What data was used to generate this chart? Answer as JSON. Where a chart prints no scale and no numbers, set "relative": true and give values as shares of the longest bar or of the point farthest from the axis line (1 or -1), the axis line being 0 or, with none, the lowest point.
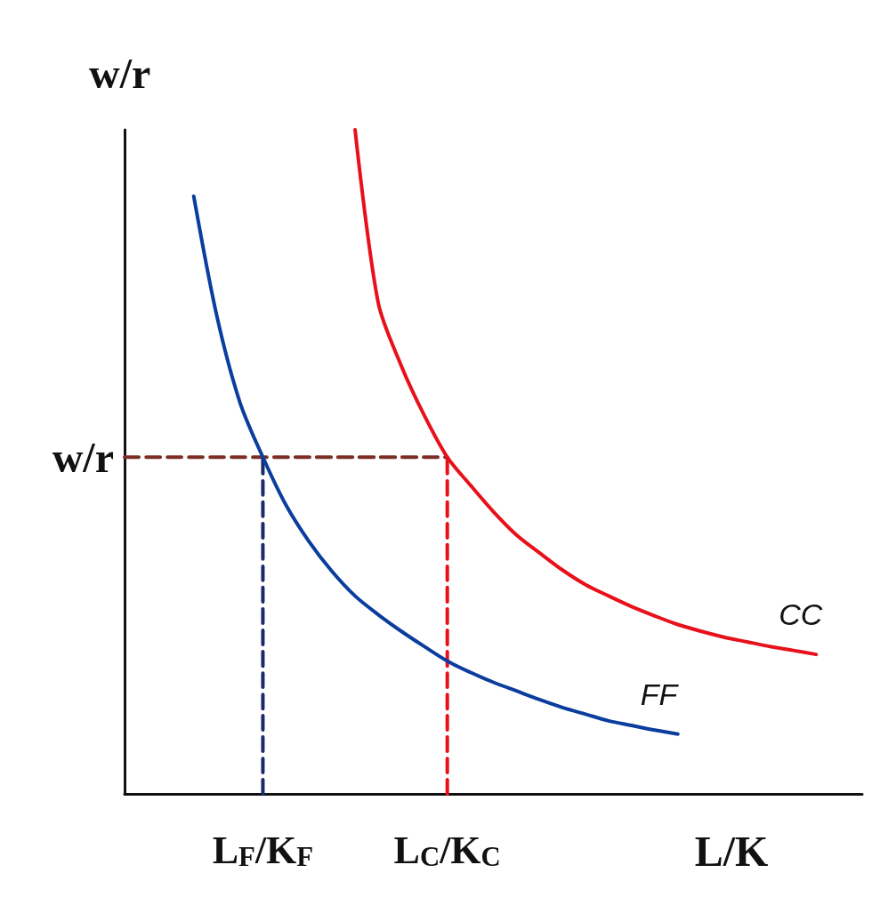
{
  "chart_data": {
    "type": "line",
    "relative": true,
    "xlabel": "L/K",
    "ylabel": "w/r",
    "categories": [
      null,
      null,
      null,
      null,
      null,
      null,
      "L$_{F}$/K$_{F}$",
      null,
      null,
      null,
      null,
      null,
      null,
      null,
      "L$_{C}$/K$_{C}$",
      null,
      null,
      null,
      null,
      null,
      null,
      null,
      null,
      null,
      null,
      null,
      null,
      null,
      null,
      null,
      null,
      null,
      null
    ],
    "annotations": [
      "w/r"
    ],
    "series": [
      {
        "name": "FF",
        "color": "#0b3d9e",
        "values": [
          null,
          null,
          null,
          0.9,
          0.72,
          0.59,
          0.507,
          0.435,
          0.38,
          0.335,
          0.298,
          0.27,
          0.245,
          0.222,
          0.2,
          0.183,
          0.168,
          0.155,
          0.142,
          0.13,
          0.12,
          0.11,
          0.103,
          0.096,
          0.09,
          null,
          null,
          null,
          null,
          null,
          null,
          null,
          null
        ]
      },
      {
        "name": "CC",
        "color": "#e8101a",
        "values": [
          null,
          null,
          null,
          null,
          null,
          null,
          null,
          null,
          null,
          null,
          1,
          0.74,
          0.645,
          0.57,
          0.507,
          0.465,
          0.425,
          0.39,
          0.363,
          0.337,
          0.315,
          0.298,
          0.282,
          0.268,
          0.255,
          0.245,
          0.236,
          0.229,
          0.222,
          0.216,
          0.21,
          null,
          null
        ]
      },
      {
        "color": "#7b2d26",
        "line_style": "dashed",
        "values": [
          0.507,
          0.507,
          0.507,
          0.507,
          0.507,
          0.507,
          0.507,
          0.507,
          0.507,
          0.507,
          0.507,
          0.507,
          0.507,
          0.507,
          0.507,
          null,
          null,
          null,
          null,
          null,
          null,
          null,
          null,
          null,
          null,
          null,
          null,
          null,
          null,
          null,
          null,
          null,
          null
        ]
      },
      {
        "color": "#1a2a6c",
        "line_style": "dashed",
        "x": [
          "L$_{F}$/K$_{F}$",
          "L$_{F}$/K$_{F}$"
        ],
        "values": [
          0,
          0.507
        ]
      },
      {
        "color": "#e8101a",
        "line_style": "dashed",
        "x": [
          "L$_{C}$/K$_{C}$",
          "L$_{C}$/K$_{C}$"
        ],
        "values": [
          0,
          0.507
        ]
      }
    ]
  }
}
